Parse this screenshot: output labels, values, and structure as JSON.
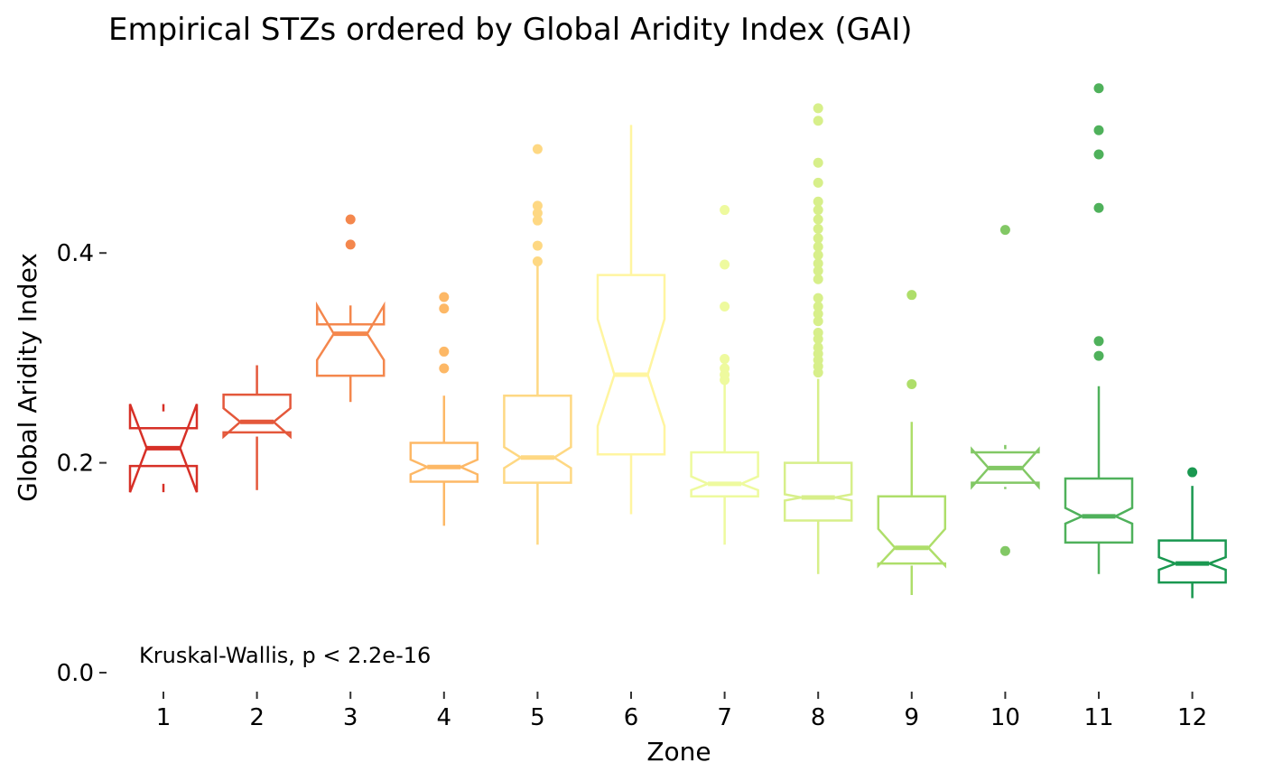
{
  "chart_data": {
    "type": "boxplot",
    "title": "Empirical STZs ordered by Global Aridity Index (GAI)",
    "xlabel": "Zone",
    "ylabel": "Global Aridity Index",
    "ylim": [
      0,
      0.58
    ],
    "yticks": [
      "0.0",
      "0.2",
      "0.4"
    ],
    "ytick_values": [
      0,
      0.2,
      0.4
    ],
    "grid": false,
    "notched": true,
    "annotation": "Kruskal-Wallis, p < 2.2e-16",
    "categories": [
      "1",
      "2",
      "3",
      "4",
      "5",
      "6",
      "7",
      "8",
      "9",
      "10",
      "11",
      "12"
    ],
    "colors": [
      "#d73027",
      "#e4583b",
      "#f4874d",
      "#fdb866",
      "#fed883",
      "#fff5a0",
      "#eefa9e",
      "#d7ef8a",
      "#aede6a",
      "#82c865",
      "#4fb15b",
      "#1a9850"
    ],
    "boxes": [
      {
        "zone": "1",
        "whisker_low": 0.18,
        "q1": 0.197,
        "median": 0.214,
        "q3": 0.233,
        "whisker_high": 0.249,
        "notch_low": 0.172,
        "notch_high": 0.256,
        "outliers": []
      },
      {
        "zone": "2",
        "whisker_low": 0.174,
        "q1": 0.229,
        "median": 0.239,
        "q3": 0.265,
        "whisker_high": 0.293,
        "notch_low": 0.225,
        "notch_high": 0.252,
        "outliers": []
      },
      {
        "zone": "3",
        "whisker_low": 0.258,
        "q1": 0.283,
        "median": 0.323,
        "q3": 0.332,
        "whisker_high": 0.332,
        "notch_low": 0.298,
        "notch_high": 0.35,
        "outliers": [
          0.432,
          0.408
        ]
      },
      {
        "zone": "4",
        "whisker_low": 0.14,
        "q1": 0.182,
        "median": 0.196,
        "q3": 0.219,
        "whisker_high": 0.264,
        "notch_low": 0.189,
        "notch_high": 0.203,
        "outliers": [
          0.358,
          0.347,
          0.306,
          0.29
        ]
      },
      {
        "zone": "5",
        "whisker_low": 0.122,
        "q1": 0.181,
        "median": 0.205,
        "q3": 0.264,
        "whisker_high": 0.389,
        "notch_low": 0.195,
        "notch_high": 0.215,
        "outliers": [
          0.499,
          0.445,
          0.438,
          0.431,
          0.407,
          0.392
        ]
      },
      {
        "zone": "6",
        "whisker_low": 0.151,
        "q1": 0.208,
        "median": 0.284,
        "q3": 0.379,
        "whisker_high": 0.522,
        "notch_low": 0.235,
        "notch_high": 0.337,
        "outliers": []
      },
      {
        "zone": "7",
        "whisker_low": 0.122,
        "q1": 0.168,
        "median": 0.18,
        "q3": 0.21,
        "whisker_high": 0.276,
        "notch_low": 0.174,
        "notch_high": 0.187,
        "outliers": [
          0.441,
          0.389,
          0.349,
          0.299,
          0.29,
          0.284,
          0.279
        ]
      },
      {
        "zone": "8",
        "whisker_low": 0.094,
        "q1": 0.145,
        "median": 0.167,
        "q3": 0.2,
        "whisker_high": 0.28,
        "notch_low": 0.164,
        "notch_high": 0.17,
        "outliers": [
          0.538,
          0.526,
          0.486,
          0.467,
          0.449,
          0.441,
          0.432,
          0.423,
          0.414,
          0.406,
          0.398,
          0.39,
          0.383,
          0.375,
          0.357,
          0.349,
          0.342,
          0.335,
          0.324,
          0.318,
          0.31,
          0.304,
          0.298,
          0.292,
          0.286
        ]
      },
      {
        "zone": "9",
        "whisker_low": 0.074,
        "q1": 0.104,
        "median": 0.119,
        "q3": 0.168,
        "whisker_high": 0.239,
        "notch_low": 0.102,
        "notch_high": 0.137,
        "outliers": [
          0.36,
          0.275
        ]
      },
      {
        "zone": "10",
        "whisker_low": 0.175,
        "q1": 0.181,
        "median": 0.195,
        "q3": 0.21,
        "whisker_high": 0.217,
        "notch_low": 0.177,
        "notch_high": 0.213,
        "outliers": [
          0.422,
          0.116
        ]
      },
      {
        "zone": "11",
        "whisker_low": 0.094,
        "q1": 0.124,
        "median": 0.149,
        "q3": 0.185,
        "whisker_high": 0.273,
        "notch_low": 0.142,
        "notch_high": 0.157,
        "outliers": [
          0.557,
          0.517,
          0.494,
          0.443,
          0.316,
          0.302
        ]
      },
      {
        "zone": "12",
        "whisker_low": 0.071,
        "q1": 0.086,
        "median": 0.104,
        "q3": 0.126,
        "whisker_high": 0.178,
        "notch_low": 0.098,
        "notch_high": 0.11,
        "outliers": [
          0.191
        ]
      }
    ]
  }
}
